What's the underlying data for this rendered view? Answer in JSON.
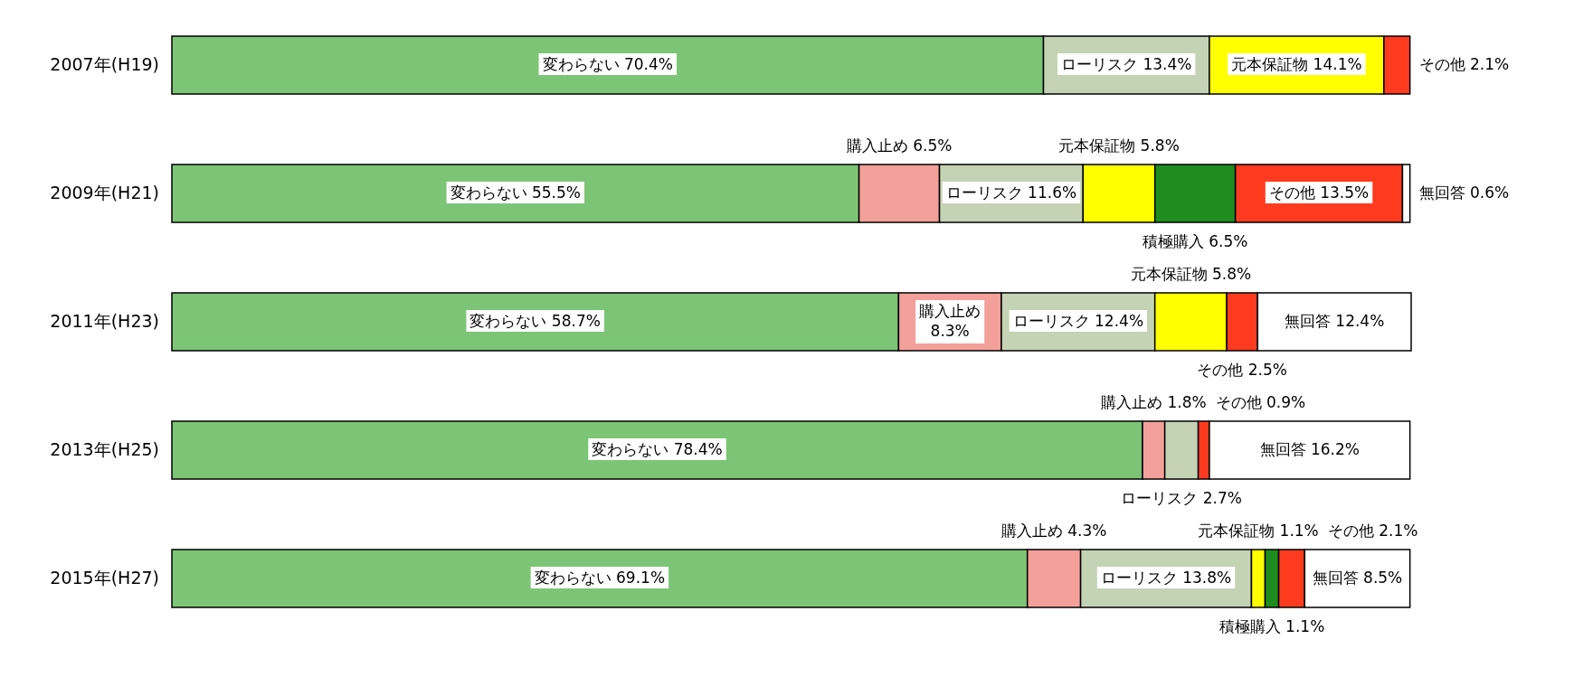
{
  "chart_data": {
    "type": "bar",
    "orientation": "horizontal",
    "stacked": true,
    "categories": [
      "2007年(H19)",
      "2009年(H21)",
      "2011年(H23)",
      "2013年(H25)",
      "2015年(H27)"
    ],
    "series": [
      {
        "name": "変わらない",
        "color": "#7cc576",
        "values": [
          70.4,
          55.5,
          58.7,
          78.4,
          69.1
        ],
        "value_labels": [
          "70.4%",
          "55.5%",
          "58.7%",
          "78.4%",
          "69.1%"
        ]
      },
      {
        "name": "購入止め",
        "color": "#f4a09a",
        "values": [
          null,
          6.5,
          8.3,
          1.8,
          4.3
        ],
        "value_labels": [
          null,
          "6.5%",
          "8.3%",
          "1.8%",
          "4.3%"
        ]
      },
      {
        "name": "ローリスク",
        "color": "#c5d3b5",
        "values": [
          13.4,
          11.6,
          12.4,
          2.7,
          13.8
        ],
        "value_labels": [
          "13.4%",
          "11.6%",
          "12.4%",
          "2.7%",
          "13.8%"
        ]
      },
      {
        "name": "元本保証物",
        "color": "#ffff00",
        "values": [
          14.1,
          5.8,
          5.8,
          null,
          1.1
        ],
        "value_labels": [
          "14.1%",
          "5.8%",
          "5.8%",
          null,
          "1.1%"
        ]
      },
      {
        "name": "積極購入",
        "color": "#1e8c1e",
        "values": [
          null,
          6.5,
          null,
          null,
          1.1
        ],
        "value_labels": [
          null,
          "6.5%",
          null,
          null,
          "1.1%"
        ]
      },
      {
        "name": "その他",
        "color": "#ff3b1f",
        "values": [
          2.1,
          13.5,
          2.5,
          0.9,
          2.1
        ],
        "value_labels": [
          "2.1%",
          "13.5%",
          "2.5%",
          "0.9%",
          "2.1%"
        ]
      },
      {
        "name": "無回答",
        "color": "#ffffff",
        "values": [
          null,
          0.6,
          12.4,
          16.2,
          8.5
        ],
        "value_labels": [
          null,
          "0.6%",
          "12.4%",
          "16.2%",
          "8.5%"
        ]
      }
    ]
  }
}
